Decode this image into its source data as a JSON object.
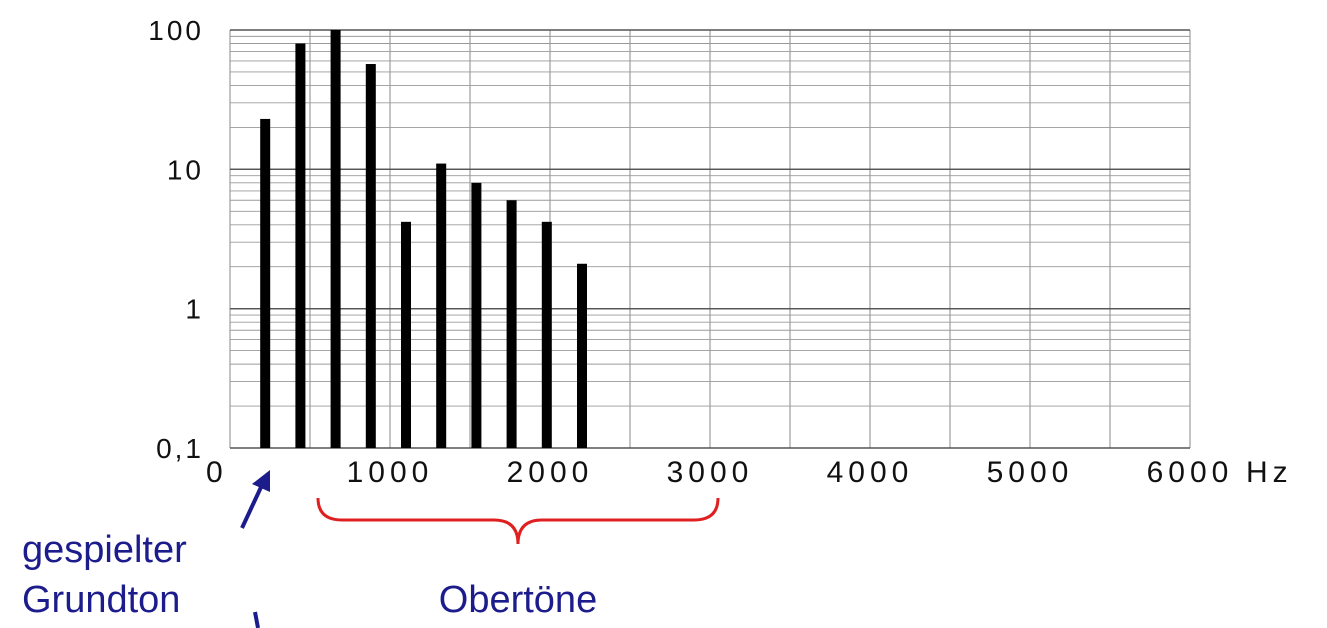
{
  "chart_data": {
    "type": "bar",
    "scale_y": "log",
    "ylim": [
      0.1,
      100
    ],
    "xlim": [
      0,
      6000
    ],
    "y_ticks": [
      "100",
      "10",
      "1",
      "0,1"
    ],
    "x_ticks": [
      "0",
      "1000",
      "2000",
      "3000",
      "4000",
      "5000",
      "6000"
    ],
    "x_unit": "Hz",
    "grid": true,
    "x": [
      220,
      440,
      660,
      880,
      1100,
      1320,
      1540,
      1760,
      1980,
      2200
    ],
    "values": [
      23,
      80,
      100,
      57,
      4.2,
      11,
      8,
      6,
      4.2,
      2.1
    ],
    "bar_color": "#000000",
    "annotations": {
      "fundamental": "gespielter Grundton",
      "fundamental_lines": [
        "gespielter",
        "Grundton"
      ],
      "overtones": "Obertöne"
    },
    "annotation_colors": {
      "label": "#1c1c8c",
      "brace": "#e02020"
    }
  }
}
